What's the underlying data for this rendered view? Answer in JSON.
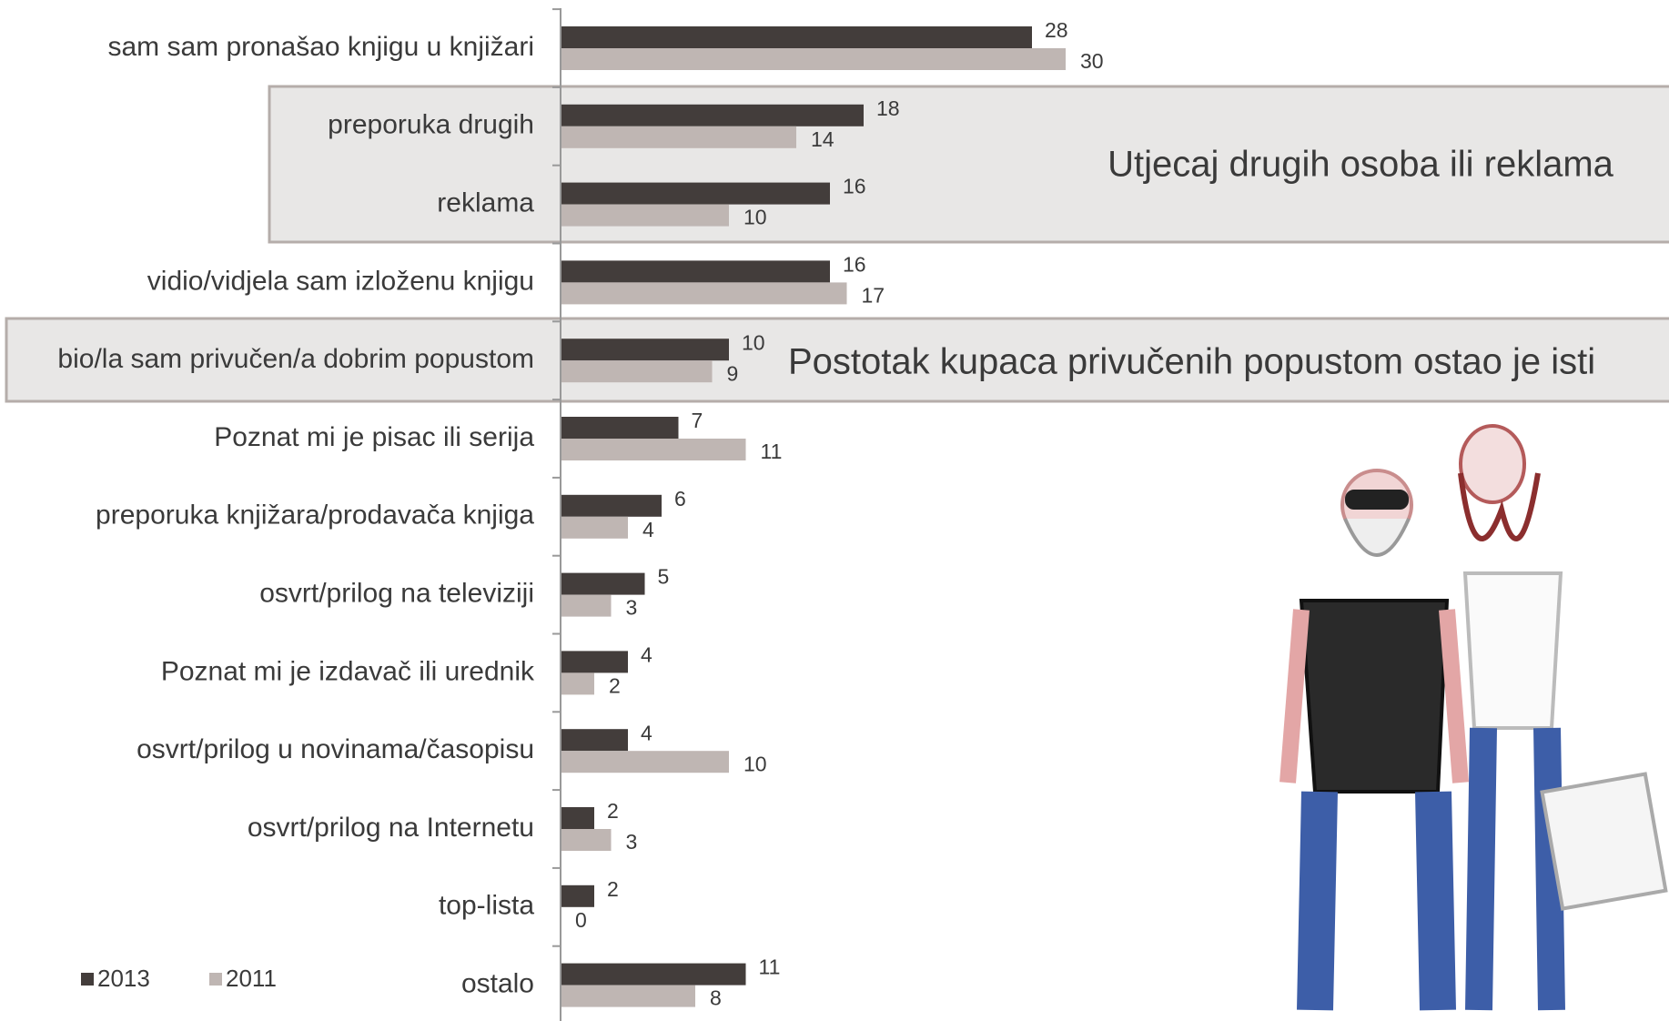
{
  "chart_data": {
    "type": "bar",
    "orientation": "horizontal",
    "categories": [
      "sam sam pronašao knjigu u knjižari",
      "preporuka drugih",
      "reklama",
      "vidio/vidjela sam izloženu knjigu",
      "bio/la sam privučen/a dobrim popustom",
      "Poznat mi je pisac ili serija",
      "preporuka knjižara/prodavača knjiga",
      "osvrt/prilog na televiziji",
      "Poznat mi je izdavač ili urednik",
      "osvrt/prilog u novinama/časopisu",
      "osvrt/prilog na Internetu",
      "top-lista",
      "ostalo"
    ],
    "series": [
      {
        "name": "2013",
        "color": "#433d3b",
        "values": [
          28,
          18,
          16,
          16,
          10,
          7,
          6,
          5,
          4,
          4,
          2,
          2,
          11
        ]
      },
      {
        "name": "2011",
        "color": "#bfb6b3",
        "values": [
          30,
          14,
          10,
          17,
          9,
          11,
          4,
          3,
          2,
          10,
          3,
          0,
          8
        ]
      }
    ],
    "annotations": [
      "Utjecaj drugih osoba ili reklama",
      "Postotak kupaca privučenih popustom ostao je isti"
    ],
    "legend": "bottom-left"
  }
}
